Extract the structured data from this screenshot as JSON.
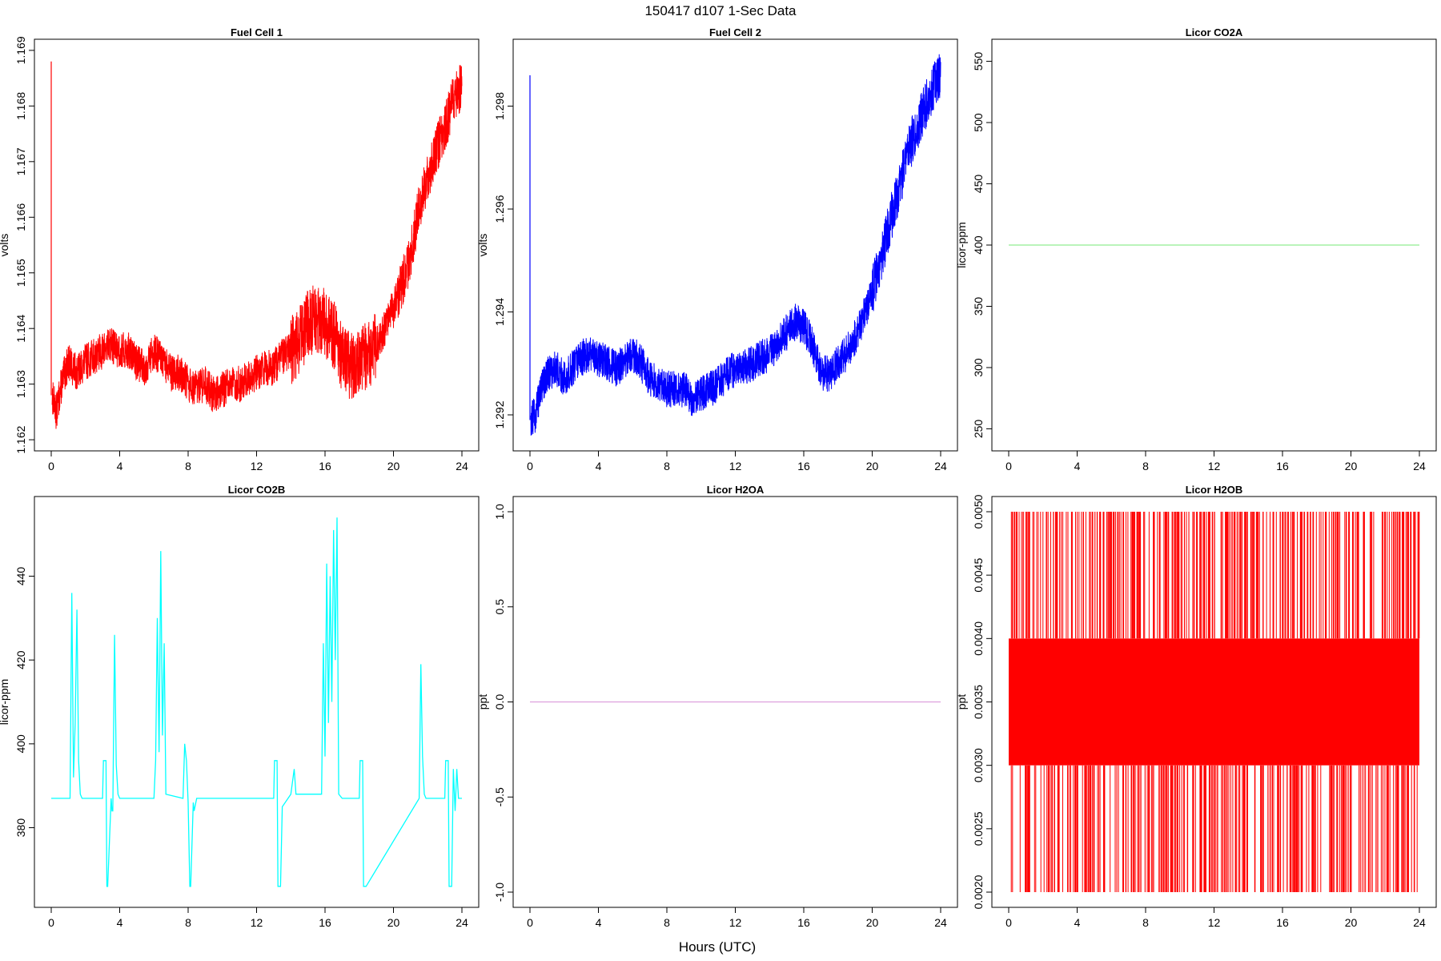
{
  "figure": {
    "title": "150417   d107   1-Sec Data",
    "xlabel": "Hours (UTC)"
  },
  "chart_data": [
    {
      "type": "line",
      "title": "Fuel Cell 1",
      "ylabel": "volts",
      "color": "#ff0000",
      "xlim": [
        0,
        24
      ],
      "xticks": [
        0,
        4,
        8,
        12,
        16,
        20,
        24
      ],
      "ylim": [
        1.1618,
        1.1692
      ],
      "yticks": [
        1.162,
        1.163,
        1.164,
        1.165,
        1.166,
        1.167,
        1.168,
        1.169
      ],
      "ytick_labels": [
        "1.162",
        "1.163",
        "1.164",
        "1.165",
        "1.166",
        "1.167",
        "1.168",
        "1.169"
      ],
      "series": [
        {
          "x": [
            0,
            0.05,
            0.3,
            0.6,
            1,
            1.5,
            2,
            2.5,
            3,
            3.5,
            4,
            4.5,
            5,
            5.5,
            6,
            6.5,
            7,
            7.5,
            8,
            8.5,
            9,
            9.5,
            10,
            10.5,
            11,
            11.5,
            12,
            12.5,
            13,
            13.5,
            14,
            14.5,
            15,
            15.5,
            16,
            16.5,
            17,
            17.5,
            18,
            18.5,
            19,
            19.5,
            20,
            20.5,
            21,
            21.5,
            22,
            22.5,
            23,
            23.5,
            24
          ],
          "y": [
            1.1688,
            1.1628,
            1.1625,
            1.163,
            1.1634,
            1.1632,
            1.1634,
            1.1635,
            1.1636,
            1.1637,
            1.1636,
            1.1636,
            1.1634,
            1.1633,
            1.1636,
            1.1634,
            1.1632,
            1.1632,
            1.163,
            1.1629,
            1.163,
            1.1628,
            1.1629,
            1.163,
            1.163,
            1.1631,
            1.1632,
            1.1633,
            1.1633,
            1.1635,
            1.1636,
            1.1638,
            1.1641,
            1.1642,
            1.1641,
            1.1639,
            1.1635,
            1.1633,
            1.1634,
            1.1635,
            1.1637,
            1.164,
            1.1644,
            1.1648,
            1.1653,
            1.1662,
            1.1667,
            1.1672,
            1.1676,
            1.1681,
            1.1684
          ]
        }
      ]
    },
    {
      "type": "line",
      "title": "Fuel Cell 2",
      "ylabel": "volts",
      "color": "#0000ff",
      "xlim": [
        0,
        24
      ],
      "xticks": [
        0,
        4,
        8,
        12,
        16,
        20,
        24
      ],
      "ylim": [
        1.2913,
        1.2993
      ],
      "yticks": [
        1.292,
        1.294,
        1.296,
        1.298
      ],
      "ytick_labels": [
        "1.292",
        "1.294",
        "1.296",
        "1.298"
      ],
      "series": [
        {
          "x": [
            0,
            0.05,
            0.3,
            0.6,
            1,
            1.5,
            2,
            2.5,
            3,
            3.5,
            4,
            4.5,
            5,
            5.5,
            6,
            6.5,
            7,
            7.5,
            8,
            8.5,
            9,
            9.5,
            10,
            10.5,
            11,
            11.5,
            12,
            12.5,
            13,
            13.5,
            14,
            14.5,
            15,
            15.5,
            16,
            16.5,
            17,
            17.5,
            18,
            18.5,
            19,
            19.5,
            20,
            20.5,
            21,
            21.5,
            22,
            22.5,
            23,
            23.5,
            24
          ],
          "y": [
            1.2986,
            1.2919,
            1.292,
            1.2924,
            1.2928,
            1.2929,
            1.2927,
            1.2929,
            1.2931,
            1.2932,
            1.2931,
            1.293,
            1.2929,
            1.293,
            1.2932,
            1.293,
            1.2927,
            1.2926,
            1.2925,
            1.2925,
            1.2925,
            1.2923,
            1.2924,
            1.2925,
            1.2926,
            1.2928,
            1.2929,
            1.2929,
            1.293,
            1.2931,
            1.2932,
            1.2934,
            1.2936,
            1.2938,
            1.2937,
            1.2934,
            1.2928,
            1.2928,
            1.293,
            1.2932,
            1.2935,
            1.2939,
            1.2944,
            1.295,
            1.2957,
            1.2963,
            1.297,
            1.2975,
            1.2979,
            1.2983,
            1.2986
          ]
        }
      ]
    },
    {
      "type": "line",
      "title": "Licor CO2A",
      "ylabel": "licor-ppm",
      "color": "#90ee90",
      "xlim": [
        0,
        24
      ],
      "xticks": [
        0,
        4,
        8,
        12,
        16,
        20,
        24
      ],
      "ylim": [
        232,
        568
      ],
      "yticks": [
        250,
        300,
        350,
        400,
        450,
        500,
        550
      ],
      "ytick_labels": [
        "250",
        "300",
        "350",
        "400",
        "450",
        "500",
        "550"
      ],
      "series": [
        {
          "x": [
            0,
            24
          ],
          "y": [
            400,
            400
          ]
        }
      ]
    },
    {
      "type": "line",
      "title": "Licor CO2B",
      "ylabel": "licor-ppm",
      "color": "#00ffff",
      "xlim": [
        0,
        24
      ],
      "xticks": [
        0,
        4,
        8,
        12,
        16,
        20,
        24
      ],
      "ylim": [
        361,
        459
      ],
      "yticks": [
        380,
        400,
        420,
        440
      ],
      "ytick_labels": [
        "380",
        "400",
        "420",
        "440"
      ],
      "series": [
        {
          "x": [
            0,
            1.1,
            1.2,
            1.3,
            1.4,
            1.5,
            1.6,
            1.7,
            1.8,
            3.0,
            3.05,
            3.2,
            3.25,
            3.3,
            3.5,
            3.55,
            3.6,
            3.7,
            3.8,
            3.9,
            4.0,
            6.0,
            6.1,
            6.2,
            6.3,
            6.4,
            6.5,
            6.6,
            6.7,
            7.7,
            7.8,
            7.9,
            8.0,
            8.1,
            8.15,
            8.3,
            8.35,
            8.5,
            13.0,
            13.05,
            13.2,
            13.25,
            13.4,
            13.5,
            14.0,
            14.2,
            14.3,
            15.8,
            15.9,
            16.0,
            16.1,
            16.2,
            16.3,
            16.4,
            16.5,
            16.6,
            16.7,
            16.8,
            17.0,
            18.0,
            18.05,
            18.2,
            18.25,
            18.4,
            21.5,
            21.6,
            21.7,
            21.8,
            21.9,
            23.0,
            23.05,
            23.2,
            23.25,
            23.4,
            23.5,
            23.6,
            23.7,
            23.8,
            24
          ],
          "y": [
            387,
            387,
            436,
            392,
            405,
            432,
            396,
            388,
            387,
            387,
            396,
            396,
            366,
            366,
            387,
            384,
            384,
            426,
            395,
            388,
            387,
            387,
            396,
            430,
            398,
            446,
            402,
            424,
            388,
            387,
            400,
            396,
            386,
            366,
            366,
            386,
            384,
            387,
            387,
            396,
            396,
            366,
            366,
            385,
            388,
            394,
            388,
            388,
            424,
            397,
            443,
            405,
            440,
            410,
            451,
            420,
            454,
            388,
            387,
            387,
            396,
            396,
            366,
            366,
            387,
            419,
            397,
            388,
            387,
            387,
            396,
            396,
            366,
            366,
            394,
            384,
            394,
            387,
            387
          ]
        }
      ]
    },
    {
      "type": "line",
      "title": "Licor H2OA",
      "ylabel": "ppt",
      "color": "#dda0dd",
      "xlim": [
        0,
        24
      ],
      "xticks": [
        0,
        4,
        8,
        12,
        16,
        20,
        24
      ],
      "ylim": [
        -1.08,
        1.08
      ],
      "yticks": [
        -1.0,
        -0.5,
        0.0,
        0.5,
        1.0
      ],
      "ytick_labels": [
        "-1.0",
        "-0.5",
        "0.0",
        "0.5",
        "1.0"
      ],
      "series": [
        {
          "x": [
            0,
            24
          ],
          "y": [
            0,
            0
          ]
        }
      ]
    },
    {
      "type": "line",
      "title": "Licor H2OB",
      "ylabel": "ppt",
      "color": "#ff0000",
      "xlim": [
        0,
        24
      ],
      "xticks": [
        0,
        4,
        8,
        12,
        16,
        20,
        24
      ],
      "ylim": [
        0.00188,
        0.00512
      ],
      "yticks": [
        0.002,
        0.0025,
        0.003,
        0.0035,
        0.004,
        0.0045,
        0.005
      ],
      "ytick_labels": [
        "0.0020",
        "0.0025",
        "0.0030",
        "0.0035",
        "0.0040",
        "0.0045",
        "0.0050"
      ],
      "series": [
        {
          "x": [
            0,
            24
          ],
          "y": [
            0.003,
            0.004
          ],
          "levels": [
            0.002,
            0.003,
            0.004,
            0.005
          ]
        }
      ]
    }
  ]
}
